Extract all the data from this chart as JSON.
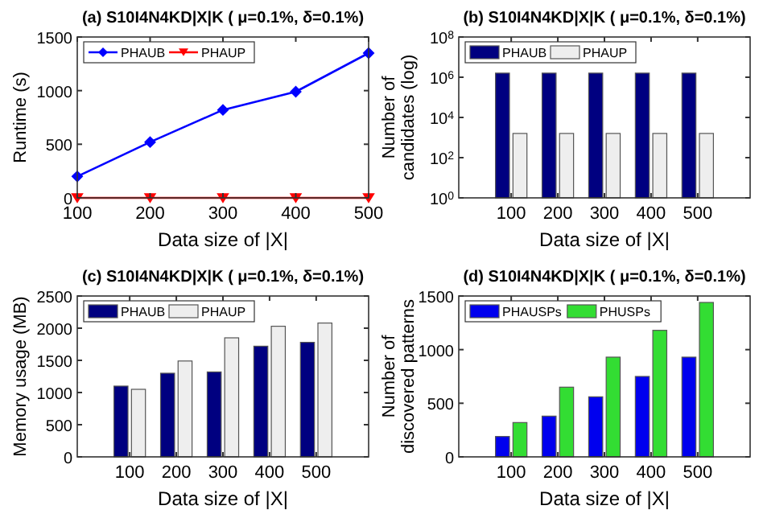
{
  "chart_data": [
    {
      "type": "line",
      "title": "(a) S10I4N4KD|X|K ( μ=0.1%, δ=0.1%)",
      "xlabel": "Data size of |X|",
      "ylabel": "Runtime (s)",
      "x": [
        100,
        200,
        300,
        400,
        500
      ],
      "xlim": [
        100,
        500
      ],
      "xticks": [
        100,
        200,
        300,
        400,
        500
      ],
      "ylim": [
        0,
        1500
      ],
      "yticks": [
        0,
        500,
        1000,
        1500
      ],
      "legend": "top left",
      "grid": false,
      "series": [
        {
          "name": "PHAUB",
          "color": "#0000ff",
          "marker": "diamond",
          "values": [
            200,
            520,
            820,
            990,
            1350
          ]
        },
        {
          "name": "PHAUP",
          "color": "#ff0000",
          "marker": "triangle",
          "values": [
            0,
            0,
            0,
            0,
            0
          ]
        }
      ]
    },
    {
      "type": "bar",
      "title": "(b) S10I4N4KD|X|K ( μ=0.1%, δ=0.1%)",
      "xlabel": "Data size of |X|",
      "ylabel": "Number of candidates (log)",
      "categories": [
        "100",
        "200",
        "300",
        "400",
        "500"
      ],
      "log": true,
      "ylim": [
        1,
        100000000
      ],
      "yticks": [
        {
          "value": 1,
          "label": "10$^{0}$"
        },
        {
          "value": 100,
          "label": "10$^{2}$"
        },
        {
          "value": 10000,
          "label": "10$^{4}$"
        },
        {
          "value": 1000000,
          "label": "10$^{6}$"
        },
        {
          "value": 100000000,
          "label": "10$^{8}$"
        }
      ],
      "legend": "top left",
      "series": [
        {
          "name": "PHAUB",
          "color": "#000080",
          "values": [
            1600000,
            1600000,
            1600000,
            1600000,
            1600000
          ]
        },
        {
          "name": "PHAUP",
          "color": "#eeeeee",
          "values": [
            1600,
            1600,
            1600,
            1600,
            1600
          ]
        }
      ]
    },
    {
      "type": "bar",
      "title": "(c) S10I4N4KD|X|K ( μ=0.1%, δ=0.1%)",
      "xlabel": "Data size of |X|",
      "ylabel": "Memory usage (MB)",
      "categories": [
        "100",
        "200",
        "300",
        "400",
        "500"
      ],
      "ylim": [
        0,
        2500
      ],
      "yticks": [
        0,
        500,
        1000,
        1500,
        2000,
        2500
      ],
      "legend": "top left",
      "series": [
        {
          "name": "PHAUB",
          "color": "#000080",
          "values": [
            1100,
            1300,
            1320,
            1720,
            1780
          ]
        },
        {
          "name": "PHAUP",
          "color": "#eeeeee",
          "values": [
            1050,
            1490,
            1850,
            2030,
            2080
          ]
        }
      ]
    },
    {
      "type": "bar",
      "title": "(d) S10I4N4KD|X|K ( μ=0.1%, δ=0.1%)",
      "xlabel": "Data size of |X|",
      "ylabel": "Number of discovered patterns",
      "categories": [
        "100",
        "200",
        "300",
        "400",
        "500"
      ],
      "ylim": [
        0,
        1500
      ],
      "yticks": [
        0,
        500,
        1000,
        1500
      ],
      "legend": "top left",
      "series": [
        {
          "name": "PHAUSPs",
          "color": "#0000ee",
          "values": [
            190,
            380,
            560,
            750,
            930
          ]
        },
        {
          "name": "PHUSPs",
          "color": "#33dd33",
          "values": [
            320,
            650,
            930,
            1180,
            1440
          ]
        }
      ]
    }
  ]
}
